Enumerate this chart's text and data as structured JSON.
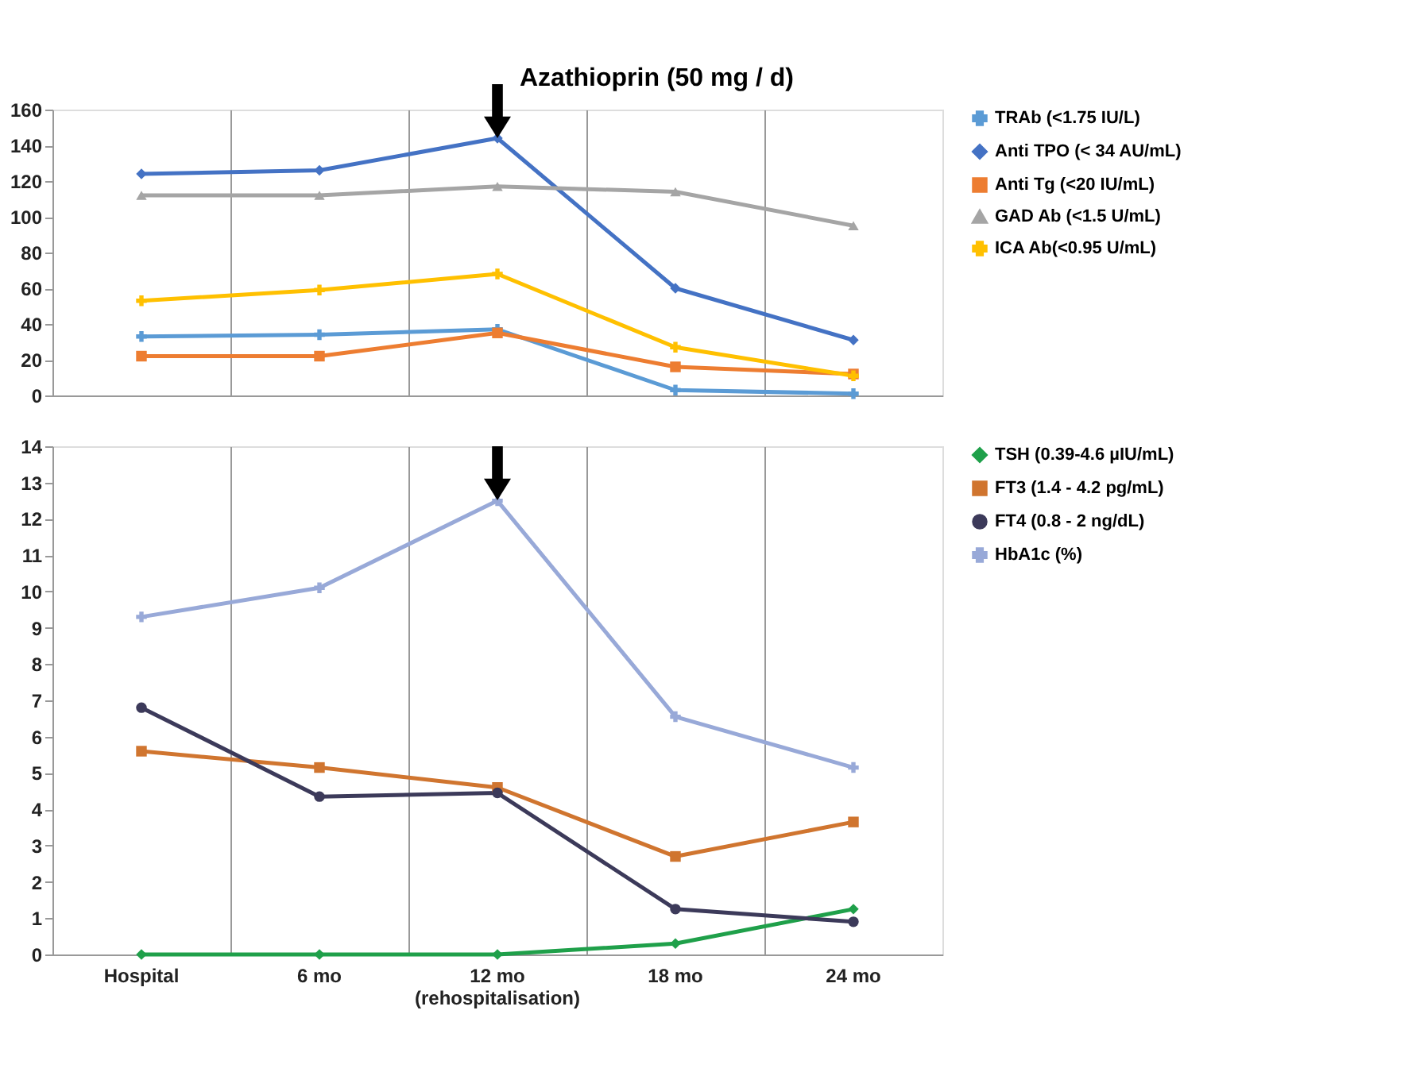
{
  "chart_data": [
    {
      "type": "line",
      "categories": [
        "Hospital",
        "6 mo",
        "12 mo\n(rehospitalisation)",
        "18 mo",
        "24 mo"
      ],
      "ylim": [
        0,
        160
      ],
      "yticks": [
        0,
        20,
        40,
        60,
        80,
        100,
        120,
        140,
        160
      ],
      "grid": "x",
      "legend": "right",
      "tick_labels": "y",
      "annotations": [
        {
          "text": "Azathioprin (50 mg / d)",
          "x": "12 mo\n(rehospitalisation)",
          "y": 144
        }
      ],
      "series": [
        {
          "name": "TRAb (<1.75 IU/L)",
          "color": "#5b9bd5",
          "marker": "cross",
          "values": [
            33,
            34,
            37,
            3,
            1
          ]
        },
        {
          "name": "Anti TPO (< 34 AU/mL)",
          "color": "#4472c4",
          "marker": "diamond",
          "values": [
            124,
            126,
            144,
            60,
            31
          ]
        },
        {
          "name": "Anti Tg (<20 IU/mL)",
          "color": "#ed7d31",
          "marker": "square",
          "values": [
            22,
            22,
            35,
            16,
            12
          ]
        },
        {
          "name": "GAD Ab (<1.5 U/mL)",
          "color": "#a5a5a5",
          "marker": "triangle",
          "values": [
            112,
            112,
            117,
            114,
            95
          ]
        },
        {
          "name": "ICA Ab(<0.95 U/mL)",
          "color": "#ffc000",
          "marker": "cross",
          "values": [
            53,
            59,
            68,
            27,
            11
          ]
        }
      ]
    },
    {
      "type": "line",
      "categories": [
        "Hospital",
        "6 mo",
        "12 mo\n(rehospitalisation)",
        "18 mo",
        "24 mo"
      ],
      "ylim": [
        0,
        14
      ],
      "yticks": [
        0,
        1,
        2,
        3,
        4,
        5,
        6,
        7,
        8,
        9,
        10,
        11,
        12,
        13,
        14
      ],
      "grid": "x",
      "legend": "right",
      "series": [
        {
          "name": "TSH (0.39-4.6 µIU/mL)",
          "color": "#1fa04a",
          "marker": "diamond",
          "values": [
            0,
            0,
            0,
            0.3,
            1.25
          ]
        },
        {
          "name": "FT3 (1.4 - 4.2 pg/mL)",
          "color": "#d0752f",
          "marker": "square",
          "values": [
            5.6,
            5.15,
            4.6,
            2.7,
            3.65
          ]
        },
        {
          "name": "FT4 (0.8 - 2 ng/dL)",
          "color": "#3c3a5a",
          "marker": "circle",
          "values": [
            6.8,
            4.35,
            4.45,
            1.25,
            0.9
          ]
        },
        {
          "name": "HbA1c (%)",
          "color": "#98a9d8",
          "marker": "cross",
          "values": [
            9.3,
            10.1,
            12.5,
            6.55,
            5.15
          ]
        }
      ]
    }
  ]
}
